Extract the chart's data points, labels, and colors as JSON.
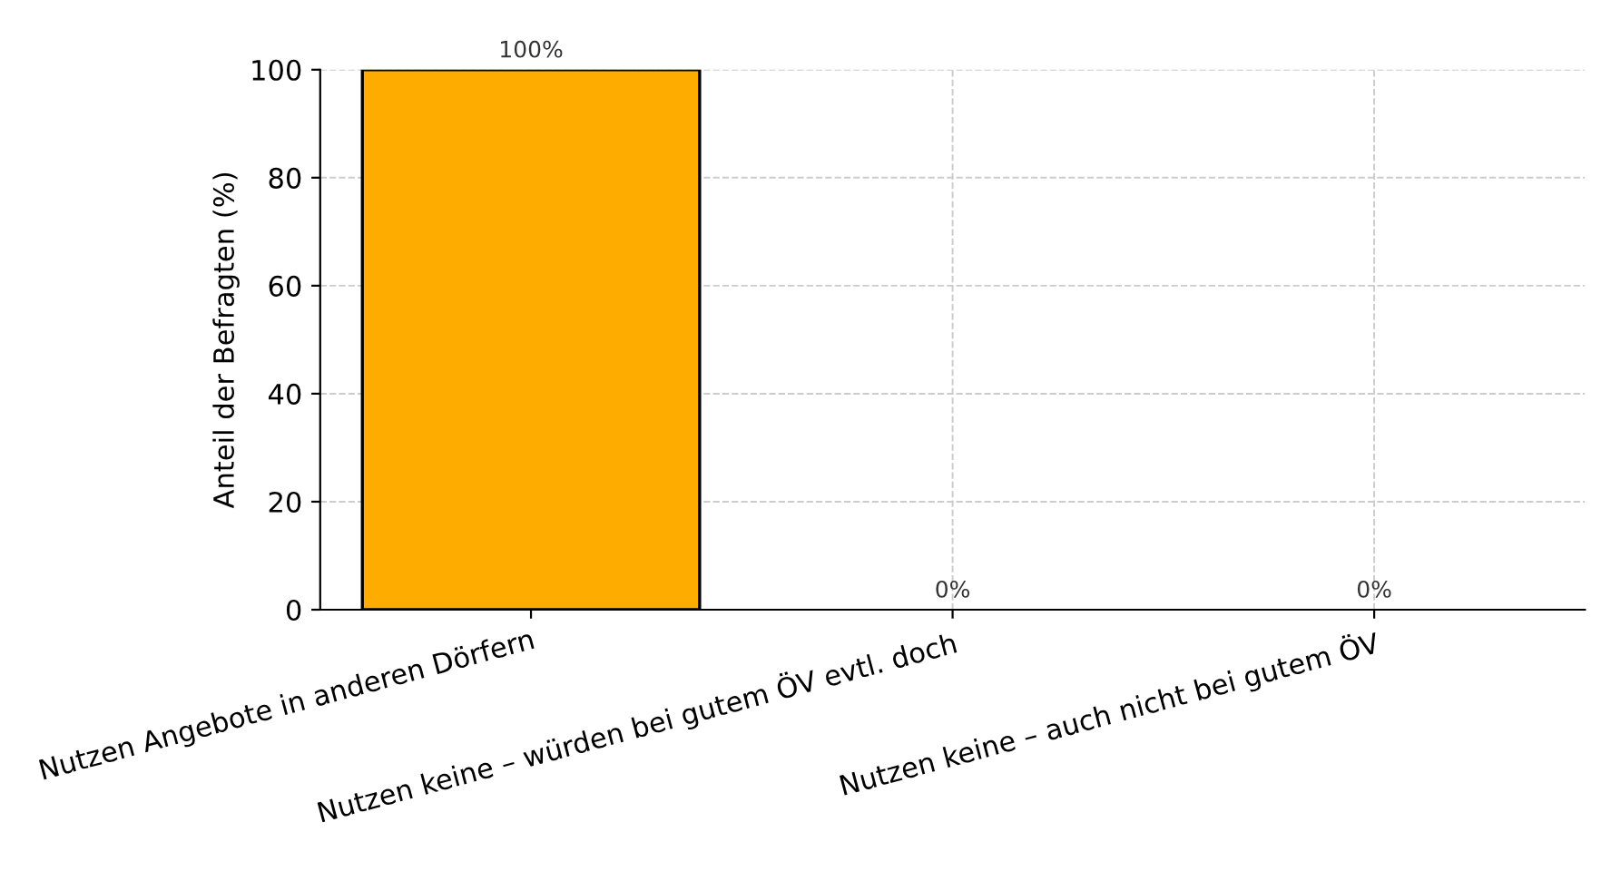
{
  "chart_data": {
    "type": "bar",
    "ylabel": "Anteil der Befragten (%)",
    "categories": [
      "Nutzen Angebote in anderen Dörfern",
      "Nutzen keine – würden bei gutem ÖV evtl. doch",
      "Nutzen keine – auch nicht bei gutem ÖV"
    ],
    "values": [
      100,
      0,
      0
    ],
    "color": "#ffac00",
    "value_labels": [
      "100%",
      "0%",
      "0%"
    ],
    "ylim": [
      0,
      100
    ],
    "yticks": [
      0,
      20,
      40,
      60,
      80,
      100
    ],
    "grid": true
  }
}
